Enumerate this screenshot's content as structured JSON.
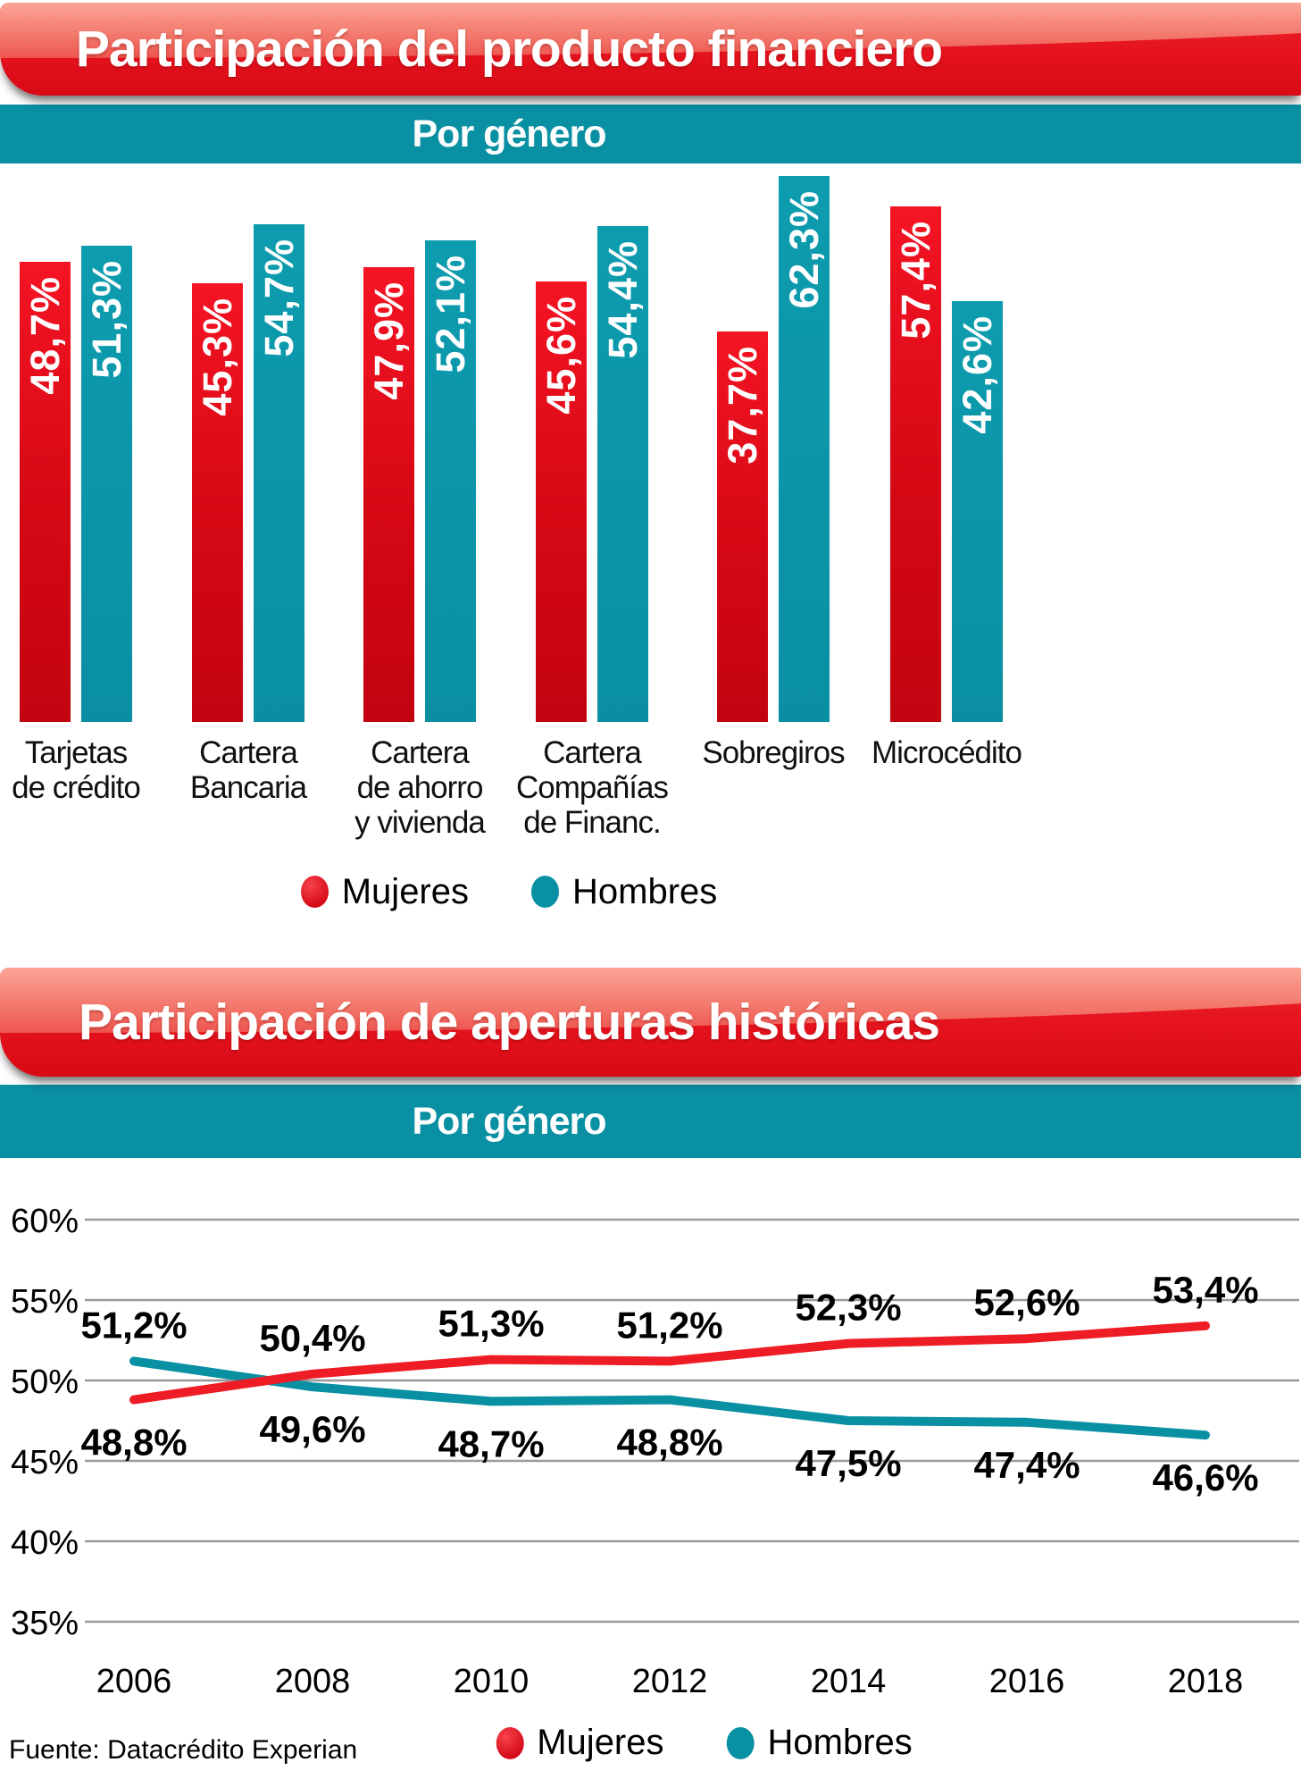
{
  "header1": {
    "title": "Participación del producto financiero",
    "subtitle": "Por género"
  },
  "header2": {
    "title": "Participación de aperturas históricas",
    "subtitle": "Por género"
  },
  "legend": {
    "mujeres": "Mujeres",
    "hombres": "Hombres"
  },
  "source": "Fuente: Datacrédito Experian",
  "colors": {
    "mujeres_red": "#e0101c",
    "hombres_teal": "#0a90a3",
    "banner_red": "#e61520",
    "gridline": "#999999"
  },
  "chart_data": [
    {
      "type": "bar",
      "title": "Participación del producto financiero",
      "subtitle": "Por género",
      "categories": [
        [
          "Tarjetas",
          "de crédito"
        ],
        [
          "Cartera",
          "Bancaria"
        ],
        [
          "Cartera",
          "de ahorro",
          "y vivienda"
        ],
        [
          "Cartera",
          "Compañías",
          "de Financ."
        ],
        [
          "Sobregiros"
        ],
        [
          "Microcédito"
        ]
      ],
      "series": [
        {
          "name": "Mujeres",
          "color": "#e0101c",
          "values": [
            48.7,
            45.3,
            47.9,
            45.6,
            37.7,
            57.4
          ],
          "labels": [
            "48,7%",
            "45,3%",
            "47,9%",
            "45,6%",
            "37,7%",
            "57,4%"
          ]
        },
        {
          "name": "Hombres",
          "color": "#0a90a3",
          "values": [
            51.3,
            54.7,
            52.1,
            54.4,
            62.3,
            42.6
          ],
          "labels": [
            "51,3%",
            "54,7%",
            "52,1%",
            "54,4%",
            "62,3%",
            "42,6%"
          ]
        }
      ],
      "value_labels_inside_bars": true,
      "legend_position": "bottom"
    },
    {
      "type": "line",
      "title": "Participación de aperturas históricas",
      "subtitle": "Por género",
      "x": [
        2006,
        2008,
        2010,
        2012,
        2014,
        2016,
        2018
      ],
      "x_labels": [
        "2006",
        "2008",
        "2010",
        "2012",
        "2014",
        "2016",
        "2018"
      ],
      "yticks": [
        60,
        55,
        50,
        45,
        40,
        35
      ],
      "ytick_labels": [
        "60%",
        "55%",
        "50%",
        "45%",
        "40%",
        "35%"
      ],
      "ylim": [
        35,
        60
      ],
      "grid": "horizontal",
      "legend_position": "bottom",
      "series": [
        {
          "name": "Mujeres",
          "color": "#ee1c24",
          "values": [
            48.8,
            50.4,
            51.3,
            51.2,
            52.3,
            52.6,
            53.4
          ],
          "labels": [
            "48,8%",
            "50,4%",
            "51,3%",
            "51,2%",
            "52,3%",
            "52,6%",
            "53,4%"
          ]
        },
        {
          "name": "Hombres",
          "color": "#0a90a3",
          "values": [
            51.2,
            49.6,
            48.7,
            48.8,
            47.5,
            47.4,
            46.6
          ],
          "labels": [
            "51,2%",
            "49,6%",
            "48,7%",
            "48,8%",
            "47,5%",
            "47,4%",
            "46,6%"
          ]
        }
      ]
    }
  ]
}
